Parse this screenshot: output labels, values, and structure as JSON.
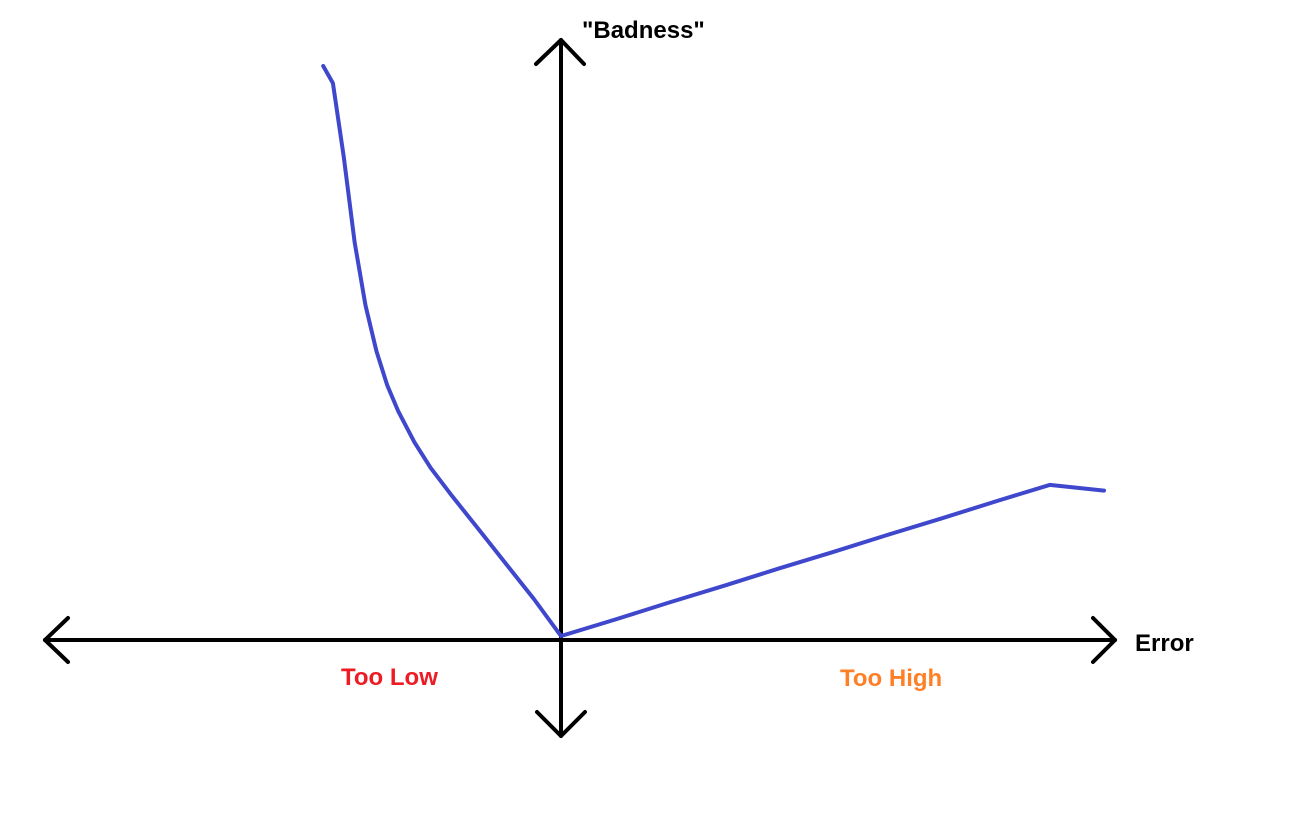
{
  "chart_data": {
    "type": "line",
    "title": "",
    "xlabel": "Error",
    "ylabel": "\"Badness\"",
    "xlim": [
      -1,
      1
    ],
    "ylim": [
      -0.17,
      1.05
    ],
    "grid": false,
    "legend": "none",
    "axis_color": "#000000",
    "annotations": [
      {
        "text": "Too Low",
        "color": "#ed1c24"
      },
      {
        "text": "Too High",
        "color": "#ff7f27"
      }
    ],
    "series": [
      {
        "color": "#3f48cc",
        "x": [
          -0.438,
          -0.42,
          -0.4,
          -0.38,
          -0.36,
          -0.34,
          -0.32,
          -0.3,
          -0.27,
          -0.24,
          -0.2,
          -0.15,
          -0.1,
          -0.05,
          0,
          0.1,
          0.2,
          0.3,
          0.4,
          0.5,
          0.6,
          0.7,
          0.8,
          0.9,
          1.0
        ],
        "y": [
          1.0,
          0.97,
          0.84,
          0.69,
          0.58,
          0.5,
          0.44,
          0.395,
          0.34,
          0.295,
          0.245,
          0.185,
          0.125,
          0.065,
          0,
          0.029,
          0.059,
          0.088,
          0.118,
          0.147,
          0.177,
          0.206,
          0.236,
          0.265,
          0.255
        ]
      }
    ]
  }
}
